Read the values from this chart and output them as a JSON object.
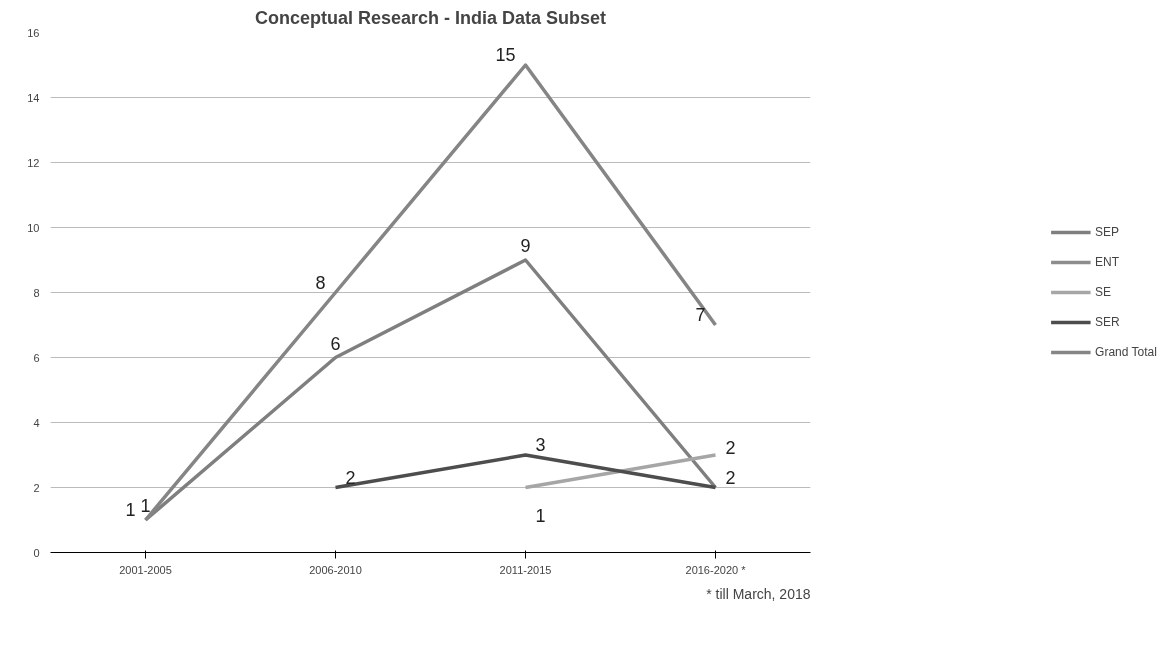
{
  "chart_data": {
    "type": "line",
    "title": "Conceptual Research - India Data Subset",
    "categories": [
      "2001-2005",
      "2006-2010",
      "2011-2015",
      "2016-2020 *"
    ],
    "series": [
      {
        "name": "SEP",
        "color": "#7f7f7f",
        "values": [
          1,
          6,
          9,
          2
        ],
        "value_labels": [
          "1",
          "6",
          "9",
          null
        ]
      },
      {
        "name": "ENT",
        "color": "#8c8c8c",
        "values": [
          null,
          null,
          null,
          null
        ]
      },
      {
        "name": "SE",
        "color": "#a6a6a6",
        "values": [
          null,
          null,
          2,
          3
        ]
      },
      {
        "name": "SER",
        "color": "#4d4d4d",
        "values": [
          null,
          2,
          3,
          2
        ],
        "value_labels": [
          null,
          "2",
          "3",
          "2"
        ]
      },
      {
        "name": "Grand Total",
        "color": "#858585",
        "values": [
          1,
          8,
          15,
          7
        ],
        "value_labels": [
          "1",
          "8",
          "15",
          "7"
        ]
      }
    ],
    "ylim": [
      0,
      16
    ],
    "yticks": [
      0,
      2,
      4,
      6,
      8,
      10,
      12,
      14,
      16
    ],
    "grid": "y",
    "legend": "right",
    "marker": "none",
    "annotations": [
      "* till March, 2018",
      "1",
      "2"
    ]
  }
}
